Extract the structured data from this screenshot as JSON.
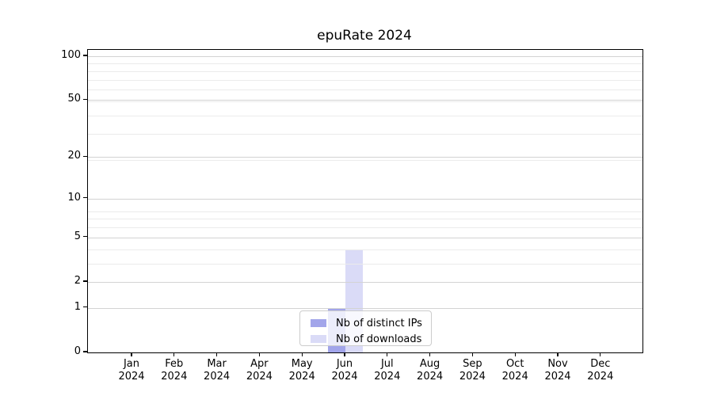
{
  "chart_data": {
    "type": "bar",
    "title": "epuRate 2024",
    "categories": [
      "Jan",
      "Feb",
      "Mar",
      "Apr",
      "May",
      "Jun",
      "Jul",
      "Aug",
      "Sep",
      "Oct",
      "Nov",
      "Dec"
    ],
    "x_year_label": "2024",
    "series": [
      {
        "name": "Nb of distinct IPs",
        "color": "#a2a5ea",
        "values": [
          0,
          0,
          0,
          0,
          0,
          1,
          0,
          0,
          0,
          0,
          0,
          0
        ]
      },
      {
        "name": "Nb of downloads",
        "color": "#dadbf7",
        "values": [
          0,
          0,
          0,
          0,
          0,
          4,
          0,
          0,
          0,
          0,
          0,
          0
        ]
      }
    ],
    "xlabel": "",
    "ylabel": "",
    "y_ticks": [
      0,
      1,
      2,
      5,
      10,
      20,
      50,
      100
    ],
    "ylim": [
      0,
      110.5
    ],
    "y_scale": "log10(1+value)",
    "grid": {
      "horizontal": true,
      "minor": true,
      "drawn_over_bars": true
    },
    "legend_position": "lower center inside plot",
    "colors": {
      "background": "#ffffff",
      "axis": "#000000",
      "grid_major": "#d3d3d3",
      "grid_minor": "#ebebeb",
      "legend_border": "#cccccc"
    }
  }
}
